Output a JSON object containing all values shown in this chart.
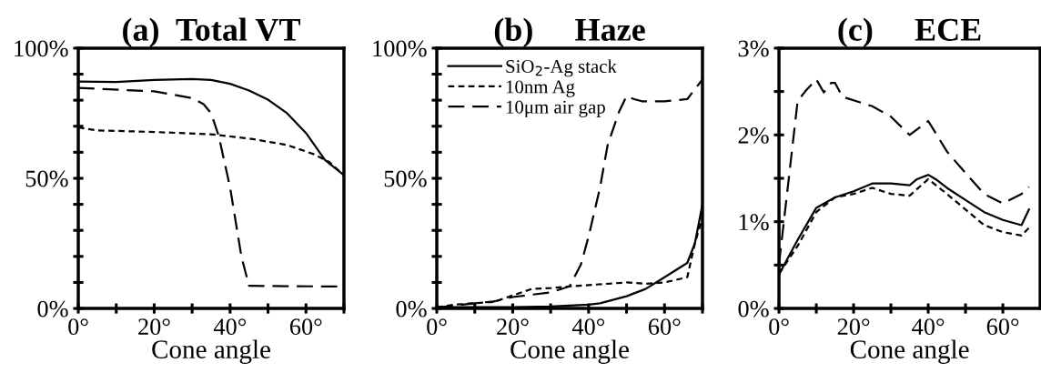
{
  "chart_data": [
    {
      "type": "line",
      "title": "(a)  Total VT",
      "xlabel": "Cone angle",
      "xlim": [
        0,
        70
      ],
      "ylim": [
        0,
        100
      ],
      "grid": false,
      "legend": false,
      "marker": "none",
      "xticks": [
        {
          "value": 0,
          "label": "0°"
        },
        {
          "value": 10,
          "label": null
        },
        {
          "value": 20,
          "label": "20°"
        },
        {
          "value": 30,
          "label": null
        },
        {
          "value": 40,
          "label": "40°"
        },
        {
          "value": 50,
          "label": null
        },
        {
          "value": 60,
          "label": "60°"
        },
        {
          "value": 70,
          "label": null
        }
      ],
      "yticks": [
        {
          "value": 0,
          "label": "0%"
        },
        {
          "value": 10,
          "label": null
        },
        {
          "value": 20,
          "label": null
        },
        {
          "value": 30,
          "label": null
        },
        {
          "value": 40,
          "label": null
        },
        {
          "value": 50,
          "label": "50%"
        },
        {
          "value": 60,
          "label": null
        },
        {
          "value": 70,
          "label": null
        },
        {
          "value": 80,
          "label": null
        },
        {
          "value": 90,
          "label": null
        },
        {
          "value": 100,
          "label": "100%"
        }
      ],
      "series": [
        {
          "color": "#000000",
          "line_style": "solid",
          "x": [
            0,
            10,
            20,
            30,
            35,
            40,
            45,
            50,
            55,
            60,
            65,
            70
          ],
          "values": [
            87.2,
            87,
            87.8,
            88.1,
            87.8,
            86.3,
            83.7,
            80.2,
            75,
            67.4,
            57,
            51.2
          ]
        },
        {
          "color": "#000000",
          "line_style": "dotted",
          "x": [
            0,
            5,
            20,
            35,
            45,
            55,
            62,
            66,
            70
          ],
          "values": [
            69.5,
            68.4,
            67.8,
            66.9,
            65.3,
            62.8,
            59.3,
            56.4,
            51.2
          ]
        },
        {
          "color": "#000000",
          "line_style": "dashed",
          "x": [
            0,
            20,
            30,
            33,
            35,
            37,
            40,
            43,
            45,
            70
          ],
          "values": [
            84.7,
            83.4,
            80.8,
            78.5,
            75,
            66.3,
            46.5,
            19.8,
            8.7,
            8.4
          ]
        }
      ]
    },
    {
      "type": "line",
      "title": "(b)     Haze",
      "xlabel": "Cone angle",
      "xlim": [
        0,
        70
      ],
      "ylim": [
        0,
        100
      ],
      "grid": false,
      "legend": "top left",
      "marker": "none",
      "xticks": [
        {
          "value": 0,
          "label": "0°"
        },
        {
          "value": 10,
          "label": null
        },
        {
          "value": 20,
          "label": "20°"
        },
        {
          "value": 30,
          "label": null
        },
        {
          "value": 40,
          "label": "40°"
        },
        {
          "value": 50,
          "label": null
        },
        {
          "value": 60,
          "label": "60°"
        },
        {
          "value": 70,
          "label": null
        }
      ],
      "yticks": [
        {
          "value": 0,
          "label": "0%"
        },
        {
          "value": 10,
          "label": null
        },
        {
          "value": 20,
          "label": null
        },
        {
          "value": 30,
          "label": null
        },
        {
          "value": 40,
          "label": null
        },
        {
          "value": 50,
          "label": "50%"
        },
        {
          "value": 60,
          "label": null
        },
        {
          "value": 70,
          "label": null
        },
        {
          "value": 80,
          "label": null
        },
        {
          "value": 90,
          "label": null
        },
        {
          "value": 100,
          "label": "100%"
        }
      ],
      "series": [
        {
          "name": "SiO$_{2}$-Ag stack",
          "color": "#000000",
          "line_style": "solid",
          "x": [
            0,
            20,
            30,
            40,
            43,
            50,
            55,
            60,
            66,
            68,
            70
          ],
          "values": [
            0.5,
            0.5,
            0.8,
            1.5,
            2,
            4.7,
            7.5,
            12,
            17.5,
            25,
            40
          ]
        },
        {
          "name": "10nm Ag",
          "color": "#000000",
          "line_style": "dotted",
          "x": [
            0,
            5,
            10,
            15,
            20,
            25,
            30,
            35,
            40,
            50,
            55,
            60,
            66,
            68,
            70
          ],
          "values": [
            0.5,
            1.5,
            2,
            2.5,
            5,
            7.5,
            7.8,
            8.5,
            9,
            10,
            9.5,
            10,
            12,
            25,
            35
          ]
        },
        {
          "name": "10μm air gap",
          "color": "#000000",
          "line_style": "dashed",
          "x": [
            0,
            10,
            15,
            20,
            30,
            35,
            38,
            40,
            43,
            45,
            48,
            50,
            52,
            54,
            60,
            66,
            70
          ],
          "values": [
            0.3,
            2,
            2.7,
            4.4,
            6.2,
            8.5,
            17,
            27.7,
            46.4,
            62.7,
            75.5,
            81.6,
            80.4,
            79.6,
            79.6,
            80.4,
            88
          ]
        }
      ]
    },
    {
      "type": "line",
      "title": "(c)     ECE",
      "xlabel": "Cone angle",
      "xlim": [
        0,
        70
      ],
      "ylim": [
        0,
        3
      ],
      "grid": false,
      "legend": false,
      "marker": "none",
      "xticks": [
        {
          "value": 0,
          "label": "0°"
        },
        {
          "value": 10,
          "label": null
        },
        {
          "value": 20,
          "label": "20°"
        },
        {
          "value": 30,
          "label": null
        },
        {
          "value": 40,
          "label": "40°"
        },
        {
          "value": 50,
          "label": null
        },
        {
          "value": 60,
          "label": "60°"
        }
      ],
      "yticks": [
        {
          "value": 0,
          "label": "0%"
        },
        {
          "value": 0.5,
          "label": null
        },
        {
          "value": 1,
          "label": "1%"
        },
        {
          "value": 1.5,
          "label": null
        },
        {
          "value": 2,
          "label": "2%"
        },
        {
          "value": 2.5,
          "label": null
        },
        {
          "value": 3,
          "label": "3%"
        }
      ],
      "series": [
        {
          "color": "#000000",
          "line_style": "solid",
          "x": [
            0,
            5,
            10,
            15,
            20,
            25,
            30,
            35,
            37,
            40,
            42,
            45,
            50,
            55,
            60,
            65,
            67
          ],
          "values": [
            0.39,
            0.79,
            1.16,
            1.28,
            1.35,
            1.44,
            1.44,
            1.42,
            1.49,
            1.54,
            1.49,
            1.39,
            1.25,
            1.11,
            1.02,
            0.96,
            1.14
          ]
        },
        {
          "color": "#000000",
          "line_style": "dotted",
          "x": [
            0,
            5,
            10,
            15,
            20,
            25,
            30,
            35,
            40,
            45,
            50,
            55,
            60,
            65,
            67
          ],
          "values": [
            0.4,
            0.72,
            1.11,
            1.28,
            1.32,
            1.39,
            1.32,
            1.3,
            1.49,
            1.32,
            1.14,
            0.96,
            0.88,
            0.84,
            0.93
          ]
        },
        {
          "color": "#000000",
          "line_style": "dashed",
          "x": [
            0,
            5,
            7,
            10,
            12,
            14,
            15,
            17,
            25,
            30,
            35,
            40,
            45,
            50,
            55,
            60,
            65,
            67
          ],
          "values": [
            0.51,
            2.39,
            2.5,
            2.64,
            2.49,
            2.6,
            2.6,
            2.44,
            2.33,
            2.21,
            2.0,
            2.16,
            1.81,
            1.56,
            1.32,
            1.21,
            1.32,
            1.4
          ]
        }
      ]
    }
  ]
}
